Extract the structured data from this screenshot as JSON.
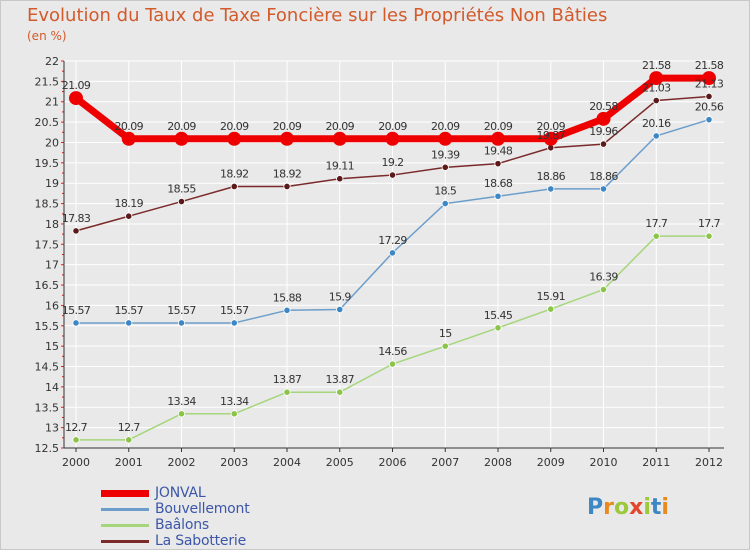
{
  "header": {
    "title": "Evolution du Taux de Taxe Foncière sur les Propriétés Non Bâties",
    "subtitle": "(en %)"
  },
  "colors": {
    "title": "#d35a2b",
    "legend_text": "#3c57a9",
    "grid": "#ffffff",
    "background": "#e9e9e9"
  },
  "logo": {
    "text": "Proxiti",
    "letters": [
      {
        "ch": "P",
        "color": "#3e87c5"
      },
      {
        "ch": "r",
        "color": "#e98a1d"
      },
      {
        "ch": "o",
        "color": "#9cc93c"
      },
      {
        "ch": "x",
        "color": "#e2462c"
      },
      {
        "ch": "i",
        "color": "#9cc93c"
      },
      {
        "ch": "t",
        "color": "#3e87c5"
      },
      {
        "ch": "i",
        "color": "#e98a1d"
      }
    ]
  },
  "chart_data": {
    "type": "line",
    "title": "Evolution du Taux de Taxe Foncière sur les Propriétés Non Bâties",
    "ylabel": "(en %)",
    "xlabel": "",
    "x": [
      "2000",
      "2001",
      "2002",
      "2003",
      "2004",
      "2005",
      "2006",
      "2007",
      "2008",
      "2009",
      "2010",
      "2011",
      "2012"
    ],
    "ylim": [
      12.5,
      22
    ],
    "yticks": [
      "12.5",
      "13",
      "13.5",
      "14",
      "14.5",
      "15",
      "15.5",
      "16",
      "16.5",
      "17",
      "17.5",
      "18",
      "18.5",
      "19",
      "19.5",
      "20",
      "20.5",
      "21",
      "21.5",
      "22"
    ],
    "grid": true,
    "legend_position": "bottom-left",
    "series": [
      {
        "name": "JONVAL",
        "color": "#ee0000",
        "values": [
          21.09,
          20.09,
          20.09,
          20.09,
          20.09,
          20.09,
          20.09,
          20.09,
          20.09,
          20.09,
          20.58,
          21.58,
          21.58
        ],
        "labels": [
          "21.09",
          "20.09",
          "20.09",
          "20.09",
          "20.09",
          "20.09",
          "20.09",
          "20.09",
          "20.09",
          "20.09",
          "20.58",
          "21.58",
          "21.58"
        ]
      },
      {
        "name": "Bouvellemont",
        "color": "#6d9ecb",
        "values": [
          15.57,
          15.57,
          15.57,
          15.57,
          15.88,
          15.9,
          17.29,
          18.5,
          18.68,
          18.86,
          18.86,
          20.16,
          20.56
        ],
        "labels": [
          "15.57",
          "15.57",
          "15.57",
          "15.57",
          "15.88",
          "15.9",
          "17.29",
          "18.5",
          "18.68",
          "18.86",
          "18.86",
          "20.16",
          "20.56"
        ]
      },
      {
        "name": "Baâlons",
        "color": "#a5d67b",
        "values": [
          12.7,
          12.7,
          13.34,
          13.34,
          13.87,
          13.87,
          14.56,
          15.0,
          15.45,
          15.91,
          16.39,
          17.7,
          17.7
        ],
        "labels": [
          "12.7",
          "12.7",
          "13.34",
          "13.34",
          "13.87",
          "13.87",
          "14.56",
          "15",
          "15.45",
          "15.91",
          "16.39",
          "17.7",
          "17.7"
        ]
      },
      {
        "name": "La Sabotterie",
        "color": "#7a2a2a",
        "values": [
          17.83,
          18.19,
          18.55,
          18.92,
          18.92,
          19.11,
          19.2,
          19.39,
          19.48,
          19.87,
          19.96,
          21.03,
          21.13
        ],
        "labels": [
          "17.83",
          "18.19",
          "18.55",
          "18.92",
          "18.92",
          "19.11",
          "19.2",
          "19.39",
          "19.48",
          "19.87",
          "19.96",
          "21.03",
          "21.13"
        ]
      }
    ]
  }
}
